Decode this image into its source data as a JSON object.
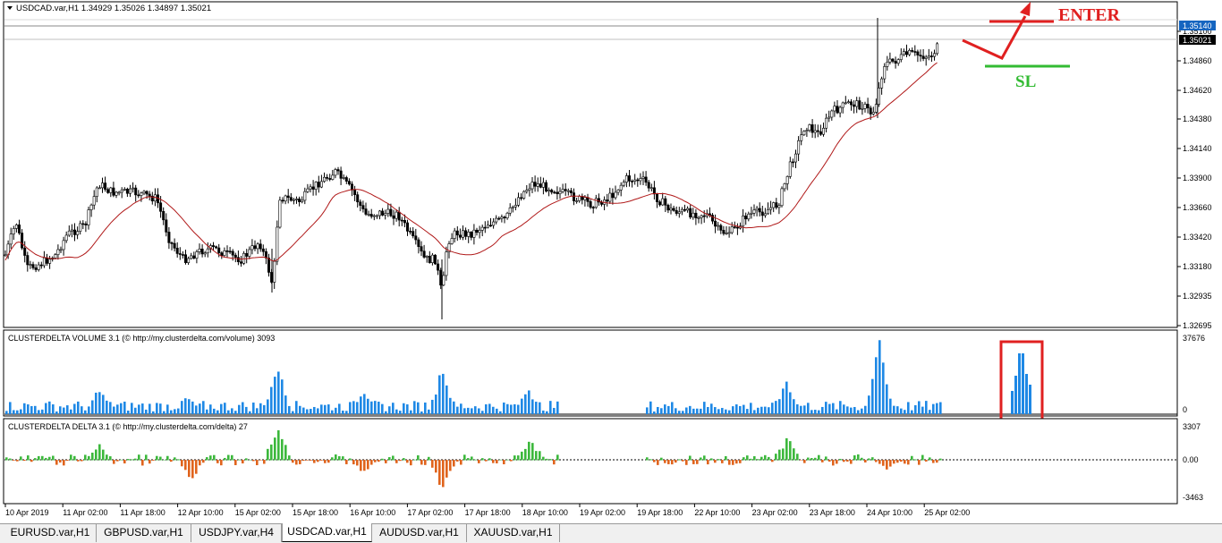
{
  "main_chart": {
    "header_text": "USDCAD.var,H1  1.34929 1.35026 1.34897 1.35021",
    "price_labels": [
      "1.35100",
      "1.34860",
      "1.34620",
      "1.34380",
      "1.34140",
      "1.33900",
      "1.33660",
      "1.33420",
      "1.33180",
      "1.32935",
      "1.32695"
    ],
    "ask_price_label": "1.35140",
    "current_price_label": "1.35021",
    "annotation_enter": "ENTER",
    "annotation_sl": "SL"
  },
  "volume_panel": {
    "header_text": "CLUSTERDELTA VOLUME 3.1 (© http://my.clusterdelta.com/volume) 3093",
    "max_label": "37676",
    "min_label": "0"
  },
  "delta_panel": {
    "header_text": "CLUSTERDELTA DELTA 3.1 (© http://my.clusterdelta.com/delta) 27",
    "max_label": "3307",
    "zero_label": "0.00",
    "min_label": "-3463"
  },
  "time_labels": [
    "10 Apr 2019",
    "11 Apr 02:00",
    "11 Apr 18:00",
    "12 Apr 10:00",
    "15 Apr 02:00",
    "15 Apr 18:00",
    "16 Apr 10:00",
    "17 Apr 02:00",
    "17 Apr 18:00",
    "18 Apr 10:00",
    "19 Apr 02:00",
    "19 Apr 18:00",
    "22 Apr 10:00",
    "23 Apr 02:00",
    "23 Apr 18:00",
    "24 Apr 10:00",
    "25 Apr 02:00"
  ],
  "tabs": [
    "EURUSD.var,H1",
    "GBPUSD.var,H1",
    "USDJPY.var,H4",
    "USDCAD.var,H1",
    "AUDUSD.var,H1",
    "XAUUSD.var,H1"
  ],
  "active_tab": "USDCAD.var,H1",
  "colors": {
    "volume_bar": "#1e88e5",
    "delta_positive": "#3cb83c",
    "delta_negative": "#e0631c",
    "moving_average": "#b01818",
    "annotation_red": "#e02020",
    "annotation_green": "#33bb33",
    "highlight_box": "#e02020"
  }
}
